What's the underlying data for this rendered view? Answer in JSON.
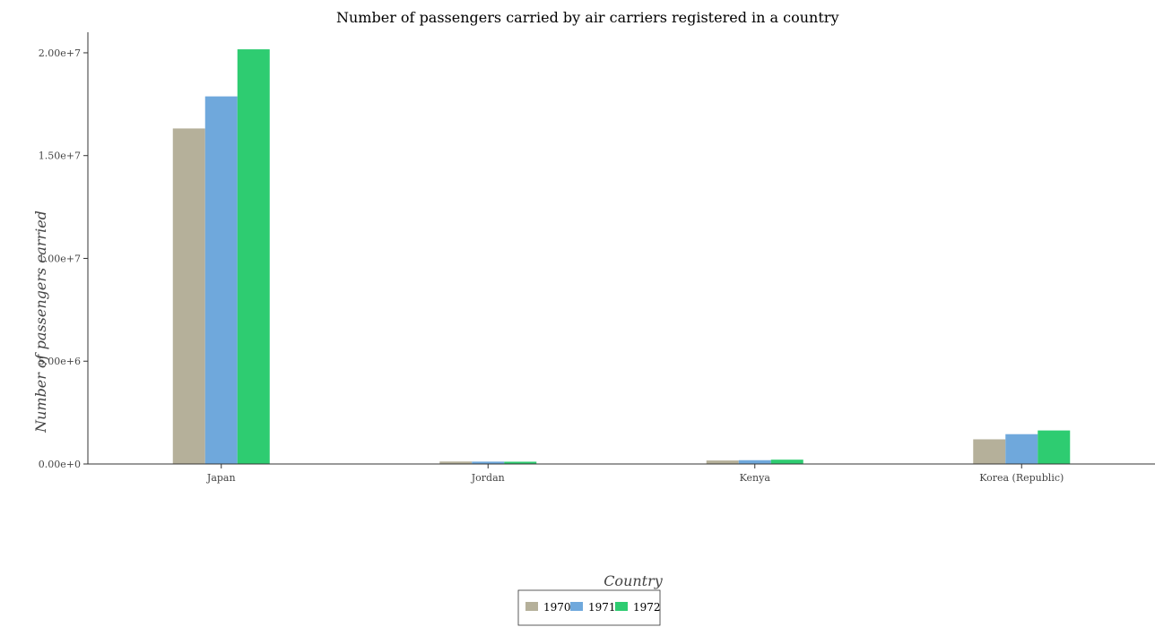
{
  "chart_data": {
    "type": "bar",
    "title": "Number of passengers carried by air carriers registered in a country",
    "xlabel": "Country",
    "ylabel": "Number of passengers carried",
    "categories": [
      "Japan",
      "Jordan",
      "Kenya",
      "Korea (Republic)"
    ],
    "series": [
      {
        "name": "1970",
        "color": "#b5b09a",
        "values": [
          16320000,
          120000,
          170000,
          1200000
        ]
      },
      {
        "name": "1971",
        "color": "#6fa8dc",
        "values": [
          17880000,
          115000,
          185000,
          1450000
        ]
      },
      {
        "name": "1972",
        "color": "#2ecc71",
        "values": [
          20170000,
          110000,
          210000,
          1630000
        ]
      }
    ],
    "ylim": [
      0,
      21000000
    ],
    "yticks": [
      0,
      5000000,
      10000000,
      15000000,
      20000000
    ],
    "ytick_labels": [
      "0.00e+0",
      "5.00e+6",
      "1.00e+7",
      "1.50e+7",
      "2.00e+7"
    ],
    "grid": false,
    "legend_position": "bottom-center"
  }
}
